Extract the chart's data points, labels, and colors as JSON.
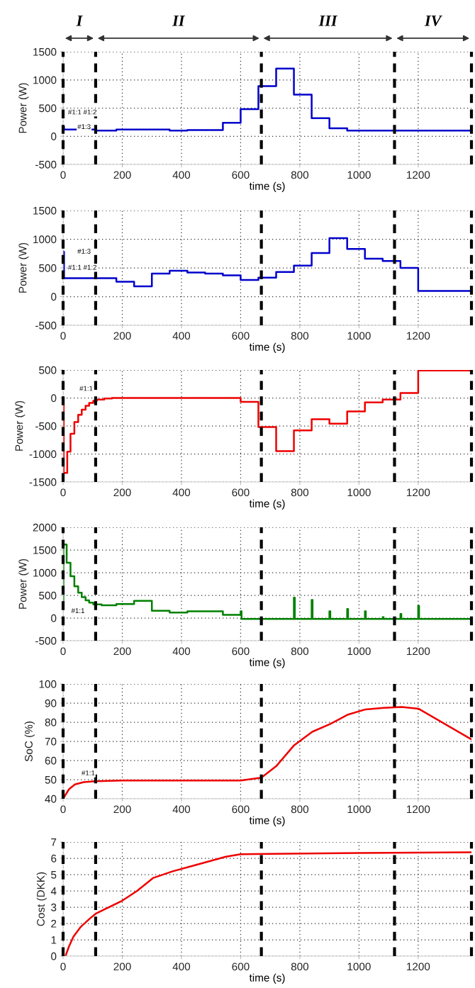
{
  "chart_data": [
    {
      "type": "step",
      "xlabel": "time (s)",
      "ylabel": "Power (W)",
      "xlim": [
        0,
        1380
      ],
      "xticks": [
        0,
        200,
        400,
        600,
        800,
        1000,
        1200
      ],
      "ylim": [
        -500,
        1500
      ],
      "yticks": [
        -500,
        0,
        500,
        1000,
        1500
      ],
      "grid": true,
      "legend": false,
      "series": [
        {
          "color": "#0000cc",
          "x": [
            0,
            3,
            110,
            180,
            360,
            420,
            540,
            600,
            660,
            720,
            780,
            840,
            900,
            960,
            1380
          ],
          "values": [
            170,
            120,
            100,
            120,
            100,
            110,
            240,
            480,
            890,
            1200,
            740,
            320,
            140,
            100,
            100
          ]
        }
      ],
      "annotations": [
        "I",
        "II",
        "III",
        "IV",
        "#1:1 #1:2",
        "#1:3"
      ],
      "ref_lines": [
        {
          "axis": "x",
          "value": 0,
          "color": "#000000",
          "line_style": "dashed"
        },
        {
          "axis": "x",
          "value": 110,
          "color": "#000000",
          "line_style": "dashed"
        },
        {
          "axis": "x",
          "value": 670,
          "color": "#000000",
          "line_style": "dashed"
        },
        {
          "axis": "x",
          "value": 1120,
          "color": "#000000",
          "line_style": "dashed"
        },
        {
          "axis": "x",
          "value": 1380,
          "color": "#000000",
          "line_style": "dashed"
        }
      ]
    },
    {
      "type": "step",
      "xlabel": "time (s)",
      "ylabel": "Power (W)",
      "xlim": [
        0,
        1380
      ],
      "xticks": [
        0,
        200,
        400,
        600,
        800,
        1000,
        1200
      ],
      "ylim": [
        -500,
        1500
      ],
      "yticks": [
        -500,
        0,
        500,
        1000,
        1500
      ],
      "grid": true,
      "legend": false,
      "series": [
        {
          "color": "#0000cc",
          "x": [
            0,
            3,
            180,
            240,
            300,
            360,
            420,
            480,
            540,
            600,
            660,
            720,
            780,
            840,
            900,
            960,
            1020,
            1080,
            1140,
            1200,
            1380
          ],
          "values": [
            780,
            320,
            260,
            180,
            400,
            450,
            420,
            400,
            370,
            290,
            330,
            430,
            540,
            760,
            1020,
            830,
            660,
            620,
            500,
            100,
            100
          ]
        }
      ],
      "annotations": [
        "#1:3",
        "#1:1 #1:2"
      ],
      "ref_lines": [
        {
          "axis": "x",
          "value": 0,
          "color": "#000000",
          "line_style": "dashed"
        },
        {
          "axis": "x",
          "value": 110,
          "color": "#000000",
          "line_style": "dashed"
        },
        {
          "axis": "x",
          "value": 670,
          "color": "#000000",
          "line_style": "dashed"
        },
        {
          "axis": "x",
          "value": 1120,
          "color": "#000000",
          "line_style": "dashed"
        },
        {
          "axis": "x",
          "value": 1380,
          "color": "#000000",
          "line_style": "dashed"
        }
      ]
    },
    {
      "type": "step",
      "xlabel": "time (s)",
      "ylabel": "Power (W)",
      "xlim": [
        0,
        1380
      ],
      "xticks": [
        0,
        200,
        400,
        600,
        800,
        1000,
        1200
      ],
      "ylim": [
        -1500,
        500
      ],
      "yticks": [
        -1500,
        -1000,
        -500,
        0,
        500
      ],
      "grid": true,
      "legend": false,
      "series": [
        {
          "color": "#ee0000",
          "x": [
            0,
            2,
            14,
            25,
            38,
            51,
            63,
            76,
            88,
            102,
            114,
            139,
            165,
            600,
            660,
            720,
            780,
            840,
            900,
            960,
            1020,
            1080,
            1140,
            1200,
            1380
          ],
          "values": [
            0,
            -1340,
            -960,
            -640,
            -430,
            -300,
            -210,
            -140,
            -90,
            -50,
            -30,
            -10,
            0,
            -70,
            -520,
            -950,
            -580,
            -380,
            -460,
            -240,
            -80,
            -30,
            90,
            490,
            490
          ]
        }
      ],
      "annotations": [
        "#1:1"
      ],
      "ref_lines": [
        {
          "axis": "x",
          "value": 0,
          "color": "#000000",
          "line_style": "dashed"
        },
        {
          "axis": "x",
          "value": 110,
          "color": "#000000",
          "line_style": "dashed"
        },
        {
          "axis": "x",
          "value": 670,
          "color": "#000000",
          "line_style": "dashed"
        },
        {
          "axis": "x",
          "value": 1120,
          "color": "#000000",
          "line_style": "dashed"
        },
        {
          "axis": "x",
          "value": 1380,
          "color": "#000000",
          "line_style": "dashed"
        }
      ]
    },
    {
      "type": "step",
      "xlabel": "time (s)",
      "ylabel": "Power (W)",
      "xlim": [
        0,
        1380
      ],
      "xticks": [
        0,
        200,
        400,
        600,
        800,
        1000,
        1200
      ],
      "ylim": [
        -500,
        2000
      ],
      "yticks": [
        -500,
        0,
        500,
        1000,
        1500,
        2000
      ],
      "grid": true,
      "legend": false,
      "series": [
        {
          "color": "#008000",
          "x": [
            0,
            1,
            12,
            25,
            38,
            51,
            63,
            76,
            88,
            102,
            130,
            180,
            240,
            300,
            360,
            420,
            540,
            600,
            603,
            780,
            783,
            840,
            843,
            900,
            903,
            960,
            963,
            1020,
            1023,
            1080,
            1083,
            1140,
            1143,
            1200,
            1203,
            1380
          ],
          "values": [
            250,
            1620,
            1220,
            920,
            700,
            560,
            460,
            390,
            340,
            300,
            280,
            310,
            380,
            160,
            120,
            150,
            70,
            150,
            -20,
            450,
            -20,
            400,
            -20,
            150,
            -20,
            200,
            -20,
            150,
            -20,
            20,
            -20,
            90,
            -20,
            270,
            -20,
            -20
          ]
        }
      ],
      "annotations": [
        "#1:1"
      ],
      "ref_lines": [
        {
          "axis": "x",
          "value": 0,
          "color": "#000000",
          "line_style": "dashed"
        },
        {
          "axis": "x",
          "value": 110,
          "color": "#000000",
          "line_style": "dashed"
        },
        {
          "axis": "x",
          "value": 670,
          "color": "#000000",
          "line_style": "dashed"
        },
        {
          "axis": "x",
          "value": 1120,
          "color": "#000000",
          "line_style": "dashed"
        },
        {
          "axis": "x",
          "value": 1380,
          "color": "#000000",
          "line_style": "dashed"
        }
      ]
    },
    {
      "type": "line",
      "xlabel": "time (s)",
      "ylabel": "SoC (%)",
      "xlim": [
        0,
        1380
      ],
      "xticks": [
        0,
        200,
        400,
        600,
        800,
        1000,
        1200
      ],
      "ylim": [
        40,
        100
      ],
      "yticks": [
        40,
        50,
        60,
        70,
        80,
        90,
        100
      ],
      "grid": true,
      "legend": false,
      "series": [
        {
          "color": "#ee0000",
          "x": [
            0,
            20,
            40,
            70,
            110,
            200,
            600,
            670,
            720,
            781,
            842,
            902,
            963,
            1022,
            1083,
            1144,
            1202,
            1380
          ],
          "values": [
            40,
            45,
            47.5,
            48.7,
            49.2,
            49.5,
            49.5,
            51,
            57,
            68,
            75,
            79,
            84,
            86.7,
            87.5,
            88,
            87,
            71
          ]
        }
      ],
      "annotations": [
        "#1:1"
      ],
      "ref_lines": [
        {
          "axis": "x",
          "value": 0,
          "color": "#000000",
          "line_style": "dashed"
        },
        {
          "axis": "x",
          "value": 110,
          "color": "#000000",
          "line_style": "dashed"
        },
        {
          "axis": "x",
          "value": 670,
          "color": "#000000",
          "line_style": "dashed"
        },
        {
          "axis": "x",
          "value": 1120,
          "color": "#000000",
          "line_style": "dashed"
        },
        {
          "axis": "x",
          "value": 1380,
          "color": "#000000",
          "line_style": "dashed"
        }
      ]
    },
    {
      "type": "line",
      "xlabel": "time (s)",
      "ylabel": "Cost (DKK)",
      "xlim": [
        0,
        1380
      ],
      "xticks": [
        0,
        200,
        400,
        600,
        800,
        1000,
        1200
      ],
      "ylim": [
        0,
        7
      ],
      "yticks": [
        0,
        1,
        2,
        3,
        4,
        5,
        6,
        7
      ],
      "grid": true,
      "legend": false,
      "series": [
        {
          "color": "#ee0000",
          "x": [
            8,
            20,
            35,
            60,
            90,
            110,
            200,
            250,
            305,
            370,
            450,
            550,
            600,
            700,
            1000,
            1380
          ],
          "values": [
            0,
            0.6,
            1.2,
            1.8,
            2.3,
            2.6,
            3.4,
            4.0,
            4.8,
            5.2,
            5.6,
            6.1,
            6.25,
            6.27,
            6.33,
            6.37
          ]
        }
      ],
      "ref_lines": [
        {
          "axis": "x",
          "value": 0,
          "color": "#000000",
          "line_style": "dashed"
        },
        {
          "axis": "x",
          "value": 110,
          "color": "#000000",
          "line_style": "dashed"
        },
        {
          "axis": "x",
          "value": 670,
          "color": "#000000",
          "line_style": "dashed"
        },
        {
          "axis": "x",
          "value": 1120,
          "color": "#000000",
          "line_style": "dashed"
        },
        {
          "axis": "x",
          "value": 1380,
          "color": "#000000",
          "line_style": "dashed"
        }
      ]
    }
  ]
}
